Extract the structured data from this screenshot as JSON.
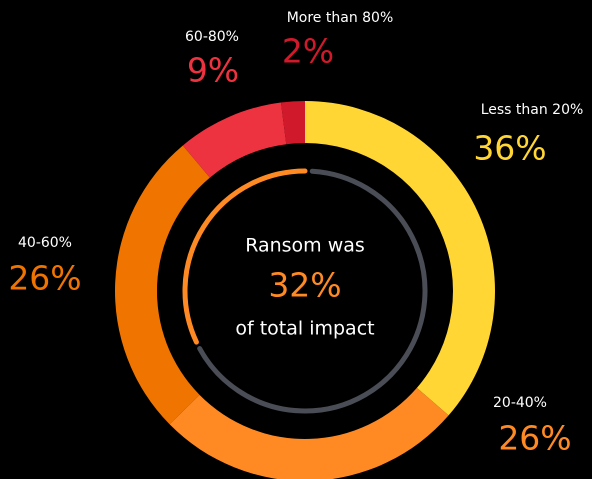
{
  "chart_data": {
    "type": "donut",
    "categories": [
      "Less than 20%",
      "20-40%",
      "40-60%",
      "60-80%",
      "More than 80%"
    ],
    "values": [
      36,
      26,
      26,
      9,
      2
    ],
    "value_labels": [
      "36%",
      "26%",
      "26%",
      "9%",
      "2%"
    ],
    "colors": [
      "#ffd633",
      "#ff8a24",
      "#f07400",
      "#ee3340",
      "#d01a2c"
    ],
    "center": {
      "line1": "Ransom was",
      "value": 32,
      "value_label": "32%",
      "line2": "of total impact",
      "color": "#ff8a24",
      "track_color": "#4a4d55"
    }
  }
}
